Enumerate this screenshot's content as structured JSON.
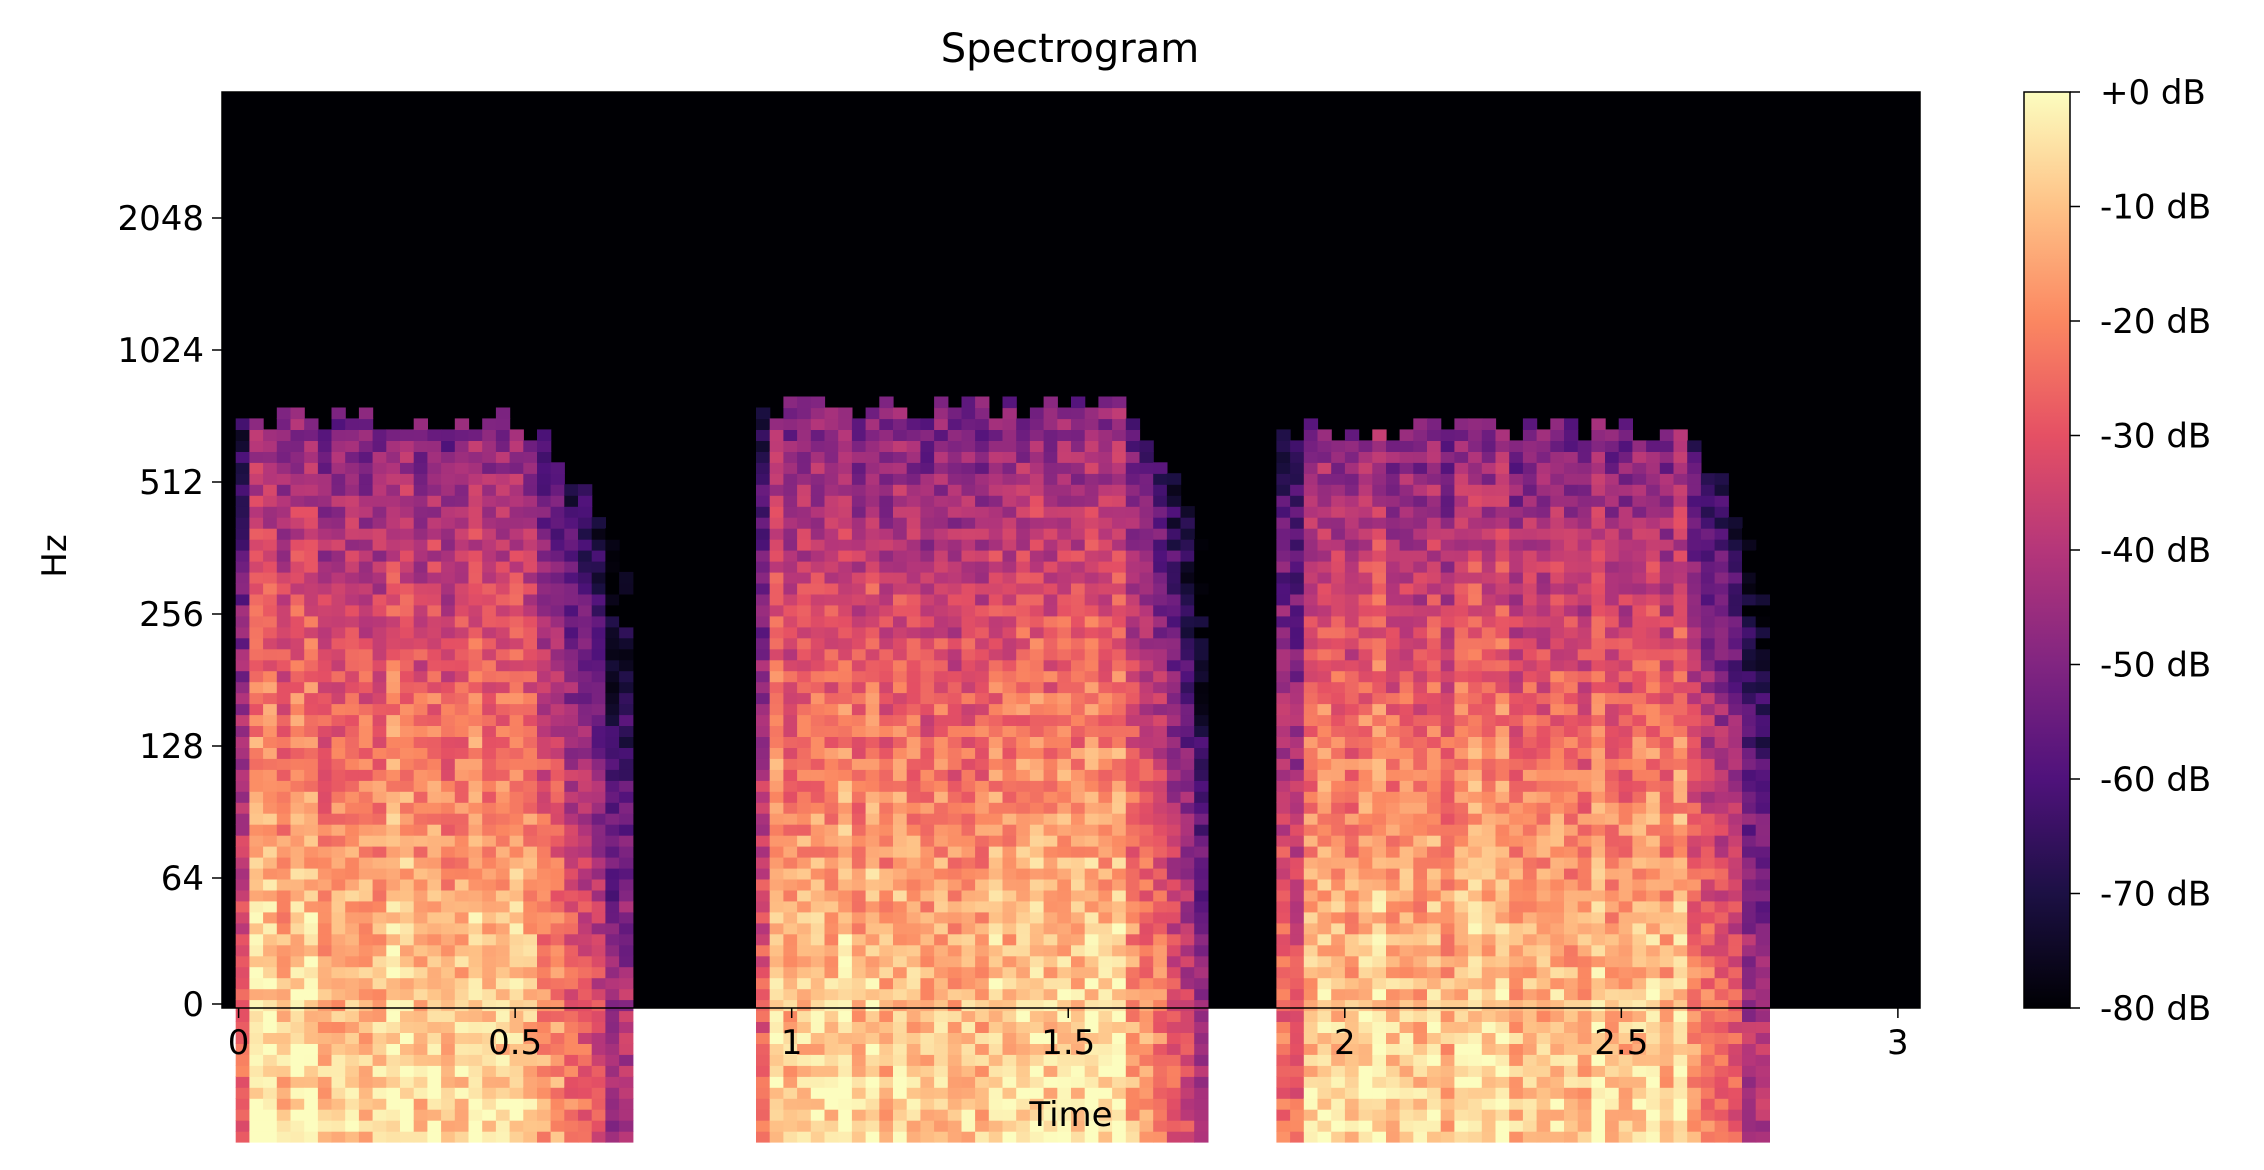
{
  "chart_data": {
    "type": "heatmap",
    "title": "Spectrogram",
    "xlabel": "Time",
    "ylabel": "Hz",
    "x_ticks": [
      "0",
      "0.5",
      "1",
      "1.5",
      "2",
      "2.5",
      "3"
    ],
    "x_tick_values": [
      0,
      0.5,
      1,
      1.5,
      2,
      2.5,
      3
    ],
    "xlim": [
      -0.03,
      3.04
    ],
    "y_ticks": [
      "0",
      "64",
      "128",
      "256",
      "512",
      "1024",
      "2048"
    ],
    "y_tick_values": [
      0,
      64,
      128,
      256,
      512,
      1024,
      2048
    ],
    "y_scale": "log2",
    "colormap": "magma",
    "colorbar": {
      "ticks": [
        "+0 dB",
        "-10 dB",
        "-20 dB",
        "-30 dB",
        "-40 dB",
        "-50 dB",
        "-60 dB",
        "-70 dB",
        "-80 dB"
      ],
      "tick_values": [
        0,
        -10,
        -20,
        -30,
        -40,
        -50,
        -60,
        -70,
        -80
      ],
      "range": [
        -80,
        0
      ]
    },
    "bursts": [
      {
        "start": 0.0,
        "end": 0.72,
        "fade_start": 0.5,
        "peak_freq_hz": 700
      },
      {
        "start": 0.93,
        "end": 1.76,
        "fade_start": 1.6,
        "peak_freq_hz": 760
      },
      {
        "start": 1.88,
        "end": 2.78,
        "fade_start": 2.6,
        "peak_freq_hz": 680
      }
    ],
    "grid": false,
    "legend": "colorbar-right"
  }
}
